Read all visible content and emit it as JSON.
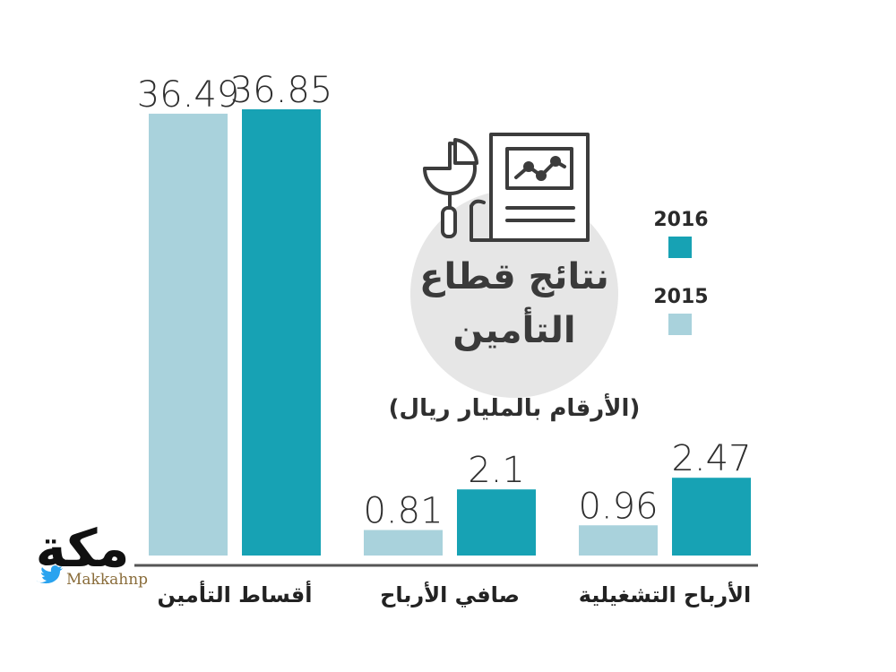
{
  "chart_data": {
    "type": "bar",
    "title": "نتائج قطاع التأمين",
    "title_lines": [
      "نتائج قطاع",
      "التأمين"
    ],
    "subtitle": "(الأرقام بالمليار ريال)",
    "categories": [
      "أقساط التأمين",
      "صافي الأرباح",
      "الأرباح التشغيلية"
    ],
    "series": [
      {
        "name": "2015",
        "values": [
          36.49,
          0.81,
          0.96
        ],
        "labels": [
          "36.49",
          "0.81",
          "0.96"
        ],
        "color": "#a9d2dc"
      },
      {
        "name": "2016",
        "values": [
          36.85,
          2.1,
          2.47
        ],
        "labels": [
          "36.85",
          "2.1",
          "2.47"
        ],
        "color": "#17a2b4"
      }
    ],
    "ylim": [
      0,
      36.85
    ],
    "xlabel": "",
    "ylabel": "",
    "grid": false,
    "legend": "right"
  },
  "brand": {
    "logo_text": "مكة",
    "handle": "Makkahnp",
    "twitter_icon": "twitter-bird-icon",
    "logo_color": "#111111",
    "accent": "#8a6d3b"
  },
  "colors": {
    "baseline": "#555555",
    "circle": "#e6e6e6",
    "icon_stroke": "#3c3c3c"
  }
}
